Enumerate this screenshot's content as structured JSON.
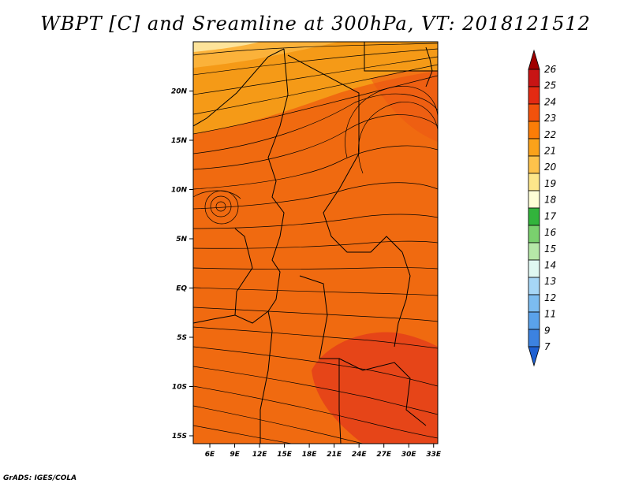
{
  "title": "WBPT [C] and Sreamline at 300hPa, VT: 2018121512",
  "credit": "GrADS: IGES/COLA",
  "map": {
    "lon_ticks": [
      "6E",
      "9E",
      "12E",
      "15E",
      "18E",
      "21E",
      "24E",
      "27E",
      "30E",
      "33E"
    ],
    "lat_ticks": [
      "20N",
      "15N",
      "10N",
      "5N",
      "EQ",
      "5S",
      "10S",
      "15S"
    ],
    "lon_range": [
      4,
      33.5
    ],
    "lat_range": [
      -15.8,
      25
    ]
  },
  "colorbar": {
    "labels": [
      "26",
      "25",
      "24",
      "23",
      "22",
      "21",
      "20",
      "19",
      "18",
      "17",
      "16",
      "15",
      "14",
      "13",
      "12",
      "11",
      "9",
      "7"
    ],
    "colors": [
      "#a00000",
      "#c81414",
      "#e32a12",
      "#f2520c",
      "#fb7d07",
      "#fba21a",
      "#fdc24b",
      "#fde68a",
      "#fefed6",
      "#32b43c",
      "#7ad06e",
      "#b6e8a8",
      "#e0f8f2",
      "#a6d6f6",
      "#7cbcf0",
      "#5aa2ea",
      "#3c82e0",
      "#1e60d2"
    ]
  },
  "chart_data": {
    "type": "heatmap",
    "title": "WBPT [C] and Sreamline at 300hPa, VT: 2018121512",
    "x_ticks": [
      "6E",
      "9E",
      "12E",
      "15E",
      "18E",
      "21E",
      "24E",
      "27E",
      "30E",
      "33E"
    ],
    "y_ticks": [
      "20N",
      "15N",
      "10N",
      "5N",
      "EQ",
      "5S",
      "10S",
      "15S"
    ],
    "color_scale": [
      7,
      9,
      11,
      12,
      13,
      14,
      15,
      16,
      17,
      18,
      19,
      20,
      21,
      22,
      23,
      24,
      25,
      26
    ],
    "regions": [
      {
        "area": "north (above ~17N)",
        "value_range": [
          19,
          21
        ]
      },
      {
        "area": "central band (15N to 7S)",
        "value_range": [
          22,
          23
        ]
      },
      {
        "area": "southeast (6S-16S, 21E-33E)",
        "value_range": [
          23,
          24
        ]
      }
    ]
  }
}
